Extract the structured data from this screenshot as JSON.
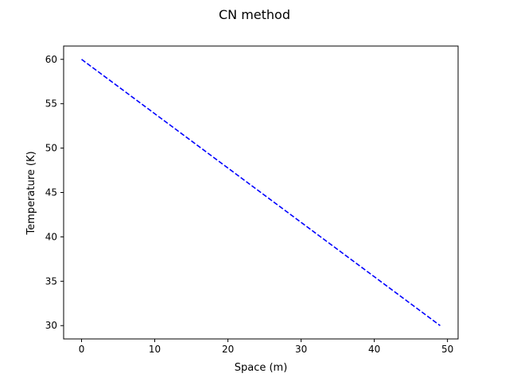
{
  "chart_data": {
    "type": "line",
    "title": "CN method",
    "xlabel": "Space (m)",
    "ylabel": "Temperature (K)",
    "xlim": [
      -2.45,
      51.45
    ],
    "ylim": [
      28.5,
      61.5
    ],
    "xticks": [
      0,
      10,
      20,
      30,
      40,
      50
    ],
    "yticks": [
      30,
      35,
      40,
      45,
      50,
      55,
      60
    ],
    "grid": false,
    "series": [
      {
        "style": "dashed",
        "color": "#0000ff",
        "x": [
          0,
          49
        ],
        "y": [
          60,
          30
        ]
      }
    ]
  }
}
